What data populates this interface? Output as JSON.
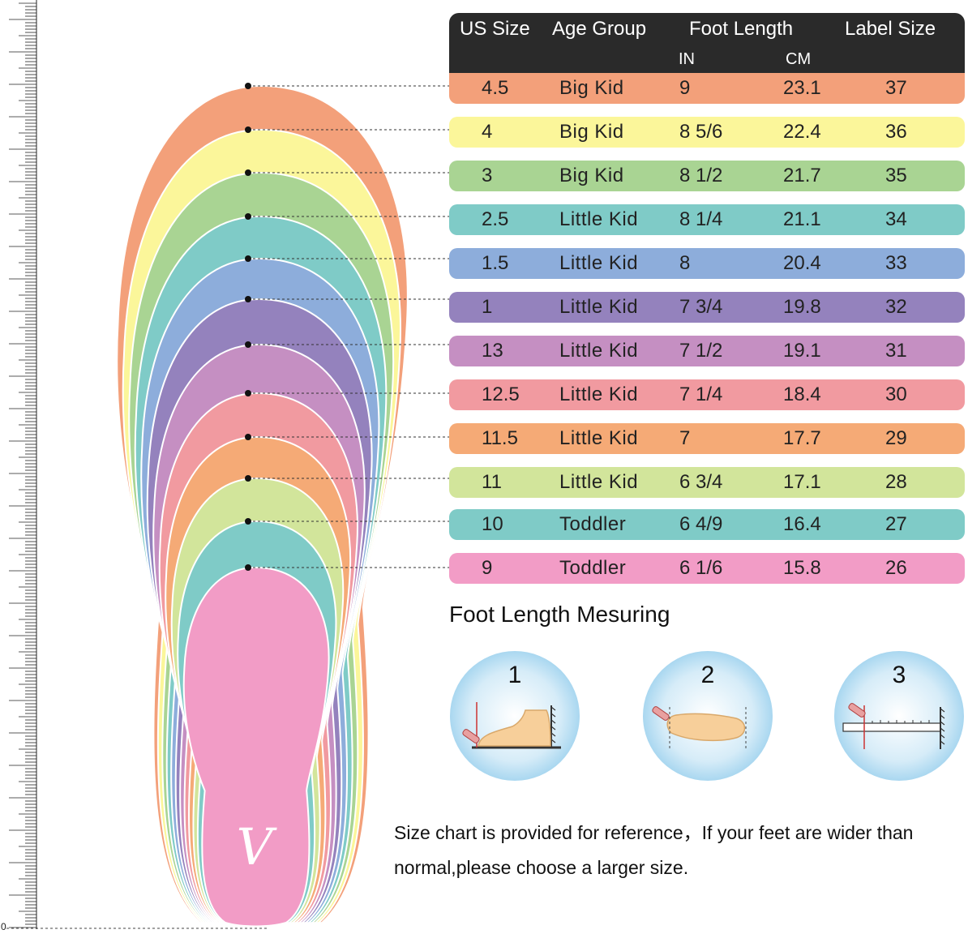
{
  "ruler": {
    "zero_label": "0"
  },
  "logo": {
    "mark": "V"
  },
  "table": {
    "headers": {
      "us_size": "US Size",
      "age_group": "Age Group",
      "foot_length": "Foot Length",
      "label_size": "Label Size",
      "in": "IN",
      "cm": "CM"
    },
    "rows": [
      {
        "us": "4.5",
        "age": "Big Kid",
        "in": "9",
        "cm": "23.1",
        "label": "37",
        "color": "#f3a07a"
      },
      {
        "us": "4",
        "age": "Big Kid",
        "in": "8  5/6",
        "cm": "22.4",
        "label": "36",
        "color": "#fbf69a"
      },
      {
        "us": "3",
        "age": "Big Kid",
        "in": "8  1/2",
        "cm": "21.7",
        "label": "35",
        "color": "#a9d493"
      },
      {
        "us": "2.5",
        "age": "Little Kid",
        "in": "8  1/4",
        "cm": "21.1",
        "label": "34",
        "color": "#7fcbc7"
      },
      {
        "us": "1.5",
        "age": "Little Kid",
        "in": "8",
        "cm": "20.4",
        "label": "33",
        "color": "#8daddb"
      },
      {
        "us": "1",
        "age": "Little Kid",
        "in": "7  3/4",
        "cm": "19.8",
        "label": "32",
        "color": "#9482bd"
      },
      {
        "us": "13",
        "age": "Little Kid",
        "in": "7  1/2",
        "cm": "19.1",
        "label": "31",
        "color": "#c58fc2"
      },
      {
        "us": "12.5",
        "age": "Little Kid",
        "in": "7  1/4",
        "cm": "18.4",
        "label": "30",
        "color": "#f19aa0"
      },
      {
        "us": "11.5",
        "age": "Little Kid",
        "in": "7",
        "cm": "17.7",
        "label": "29",
        "color": "#f5aa76"
      },
      {
        "us": "11",
        "age": "Little Kid",
        "in": "6  3/4",
        "cm": "17.1",
        "label": "28",
        "color": "#d2e59b"
      },
      {
        "us": "10",
        "age": "Toddler",
        "in": "6  4/9",
        "cm": "16.4",
        "label": "27",
        "color": "#7fcbc7"
      },
      {
        "us": "9",
        "age": "Toddler",
        "in": "6  1/6",
        "cm": "15.8",
        "label": "26",
        "color": "#f29cc6"
      }
    ]
  },
  "measuring": {
    "title": "Foot Length Mesuring",
    "steps": [
      {
        "number": "1",
        "icon": "foot-side-view-icon"
      },
      {
        "number": "2",
        "icon": "foot-top-view-icon"
      },
      {
        "number": "3",
        "icon": "ruler-measure-icon"
      }
    ]
  },
  "note": {
    "line1": "Size chart is provided for reference，If your feet are wider than",
    "line2": "normal,please choose a larger size."
  }
}
